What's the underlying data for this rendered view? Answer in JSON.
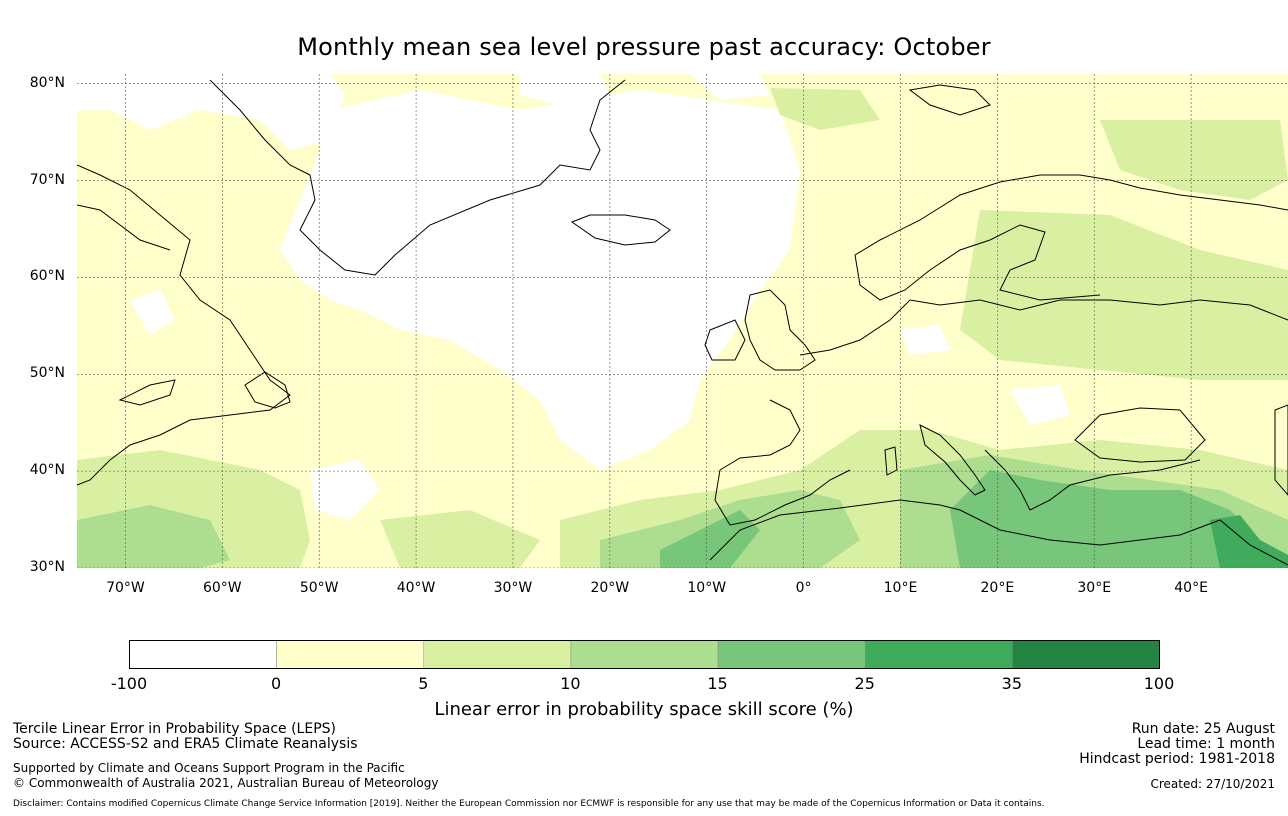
{
  "title": "Monthly mean sea level pressure past accuracy: October",
  "map": {
    "lat_ticks": [
      "80°N",
      "70°N",
      "60°N",
      "50°N",
      "40°N",
      "30°N"
    ],
    "lon_ticks": [
      "70°W",
      "60°W",
      "50°W",
      "40°W",
      "30°W",
      "20°W",
      "10°W",
      "0°",
      "10°E",
      "20°E",
      "30°E",
      "40°E"
    ],
    "lat_values": [
      80,
      70,
      60,
      50,
      40,
      30
    ],
    "lon_values": [
      -70,
      -60,
      -50,
      -40,
      -30,
      -20,
      -10,
      0,
      10,
      20,
      30,
      40
    ],
    "extent": {
      "lon_min": -75,
      "lon_max": 50,
      "lat_min": 30,
      "lat_max": 81
    },
    "gridlines": true
  },
  "colorbar": {
    "boundaries": [
      "-100",
      "0",
      "5",
      "10",
      "15",
      "25",
      "35",
      "100"
    ],
    "colors": [
      "#ffffff",
      "#ffffcc",
      "#d9f0a3",
      "#addd8e",
      "#78c679",
      "#41ab5d",
      "#238443"
    ],
    "label": "Linear error in probability space skill score (%)"
  },
  "footer": {
    "left_line1": "Tercile Linear Error in Probability Space (LEPS)",
    "left_line2": "Source: ACCESS-S2 and ERA5 Climate Reanalysis",
    "left_line3": "Supported by Climate and Oceans Support Program in the Pacific",
    "left_line4": "© Commonwealth of Australia 2021, Australian Bureau of Meteorology",
    "right_line1": "Run date: 25 August",
    "right_line2": "Lead time: 1 month",
    "right_line3": "Hindcast period: 1981-2018",
    "right_line4": "Created: 27/10/2021",
    "disclaimer": "Disclaimer: Contains modified Copernicus Climate Change Service Information [2019]. Neither the European Commission nor ECMWF is responsible for any use that may be made of the Copernicus Information or Data it contains."
  }
}
